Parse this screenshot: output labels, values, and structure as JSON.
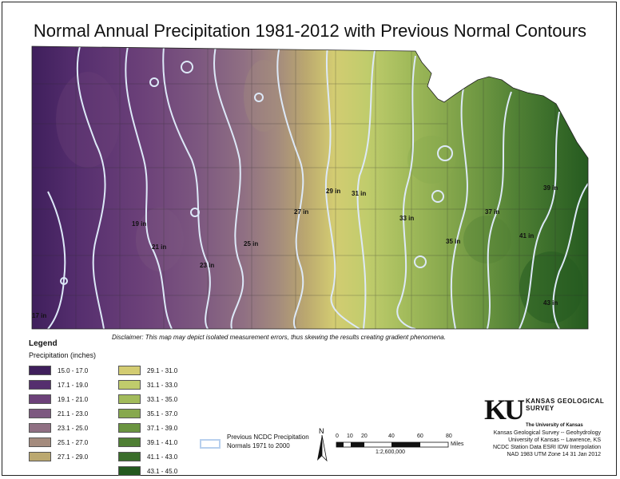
{
  "title": "Normal Annual Precipitation 1981-2012 with Previous Normal Contours",
  "disclaimer": "Disclaimer: This map may depict isolated measurement errors, thus skewing the results creating gradient phenomena.",
  "legend": {
    "title": "Legend",
    "subtitle": "Precipitation (inches)",
    "classes": [
      {
        "label": "15.0 - 17.0",
        "color": "#3f1f5c"
      },
      {
        "label": "17.1 - 19.0",
        "color": "#552e6e"
      },
      {
        "label": "19.1 - 21.0",
        "color": "#6c4179"
      },
      {
        "label": "21.1 - 23.0",
        "color": "#7d5880"
      },
      {
        "label": "23.1 - 25.0",
        "color": "#907083"
      },
      {
        "label": "25.1 - 27.0",
        "color": "#a48b7d"
      },
      {
        "label": "27.1 - 29.0",
        "color": "#bba86f"
      },
      {
        "label": "29.1 - 31.0",
        "color": "#d3cc72"
      },
      {
        "label": "31.1 - 33.0",
        "color": "#c0cc6c"
      },
      {
        "label": "33.1 - 35.0",
        "color": "#a2bb5b"
      },
      {
        "label": "35.1 - 37.0",
        "color": "#87a84d"
      },
      {
        "label": "37.1 - 39.0",
        "color": "#6a9440"
      },
      {
        "label": "39.1 - 41.0",
        "color": "#4f7f34"
      },
      {
        "label": "41.1 - 43.0",
        "color": "#3a6d2a"
      },
      {
        "label": "43.1 - 45.0",
        "color": "#24591f"
      }
    ],
    "contour_label": "Previous NCDC Precipitation Normals 1971 to 2000",
    "contour_color": "#cfe0f5"
  },
  "contour_labels": [
    "17 in",
    "19 in",
    "21 in",
    "23 in",
    "25 in",
    "27 in",
    "29 in",
    "31 in",
    "33 in",
    "35 in",
    "37 in",
    "39 in",
    "41 in",
    "43 in"
  ],
  "north_label": "N",
  "scale": {
    "ticks": [
      "0",
      "10",
      "20",
      "40",
      "60",
      "80"
    ],
    "unit": "Miles",
    "ratio": "1:2,600,000"
  },
  "ku": {
    "logo": "KU",
    "name": "KANSAS GEOLOGICAL SURVEY",
    "university": "The University of Kansas"
  },
  "credits": [
    "Kansas Geological Survey -- Geohydrology",
    "University of Kansas -- Lawrence, KS",
    "NCDC Station Data  ESRI IDW Interpolation",
    "NAD 1983 UTM Zone 14  31 Jan 2012"
  ]
}
